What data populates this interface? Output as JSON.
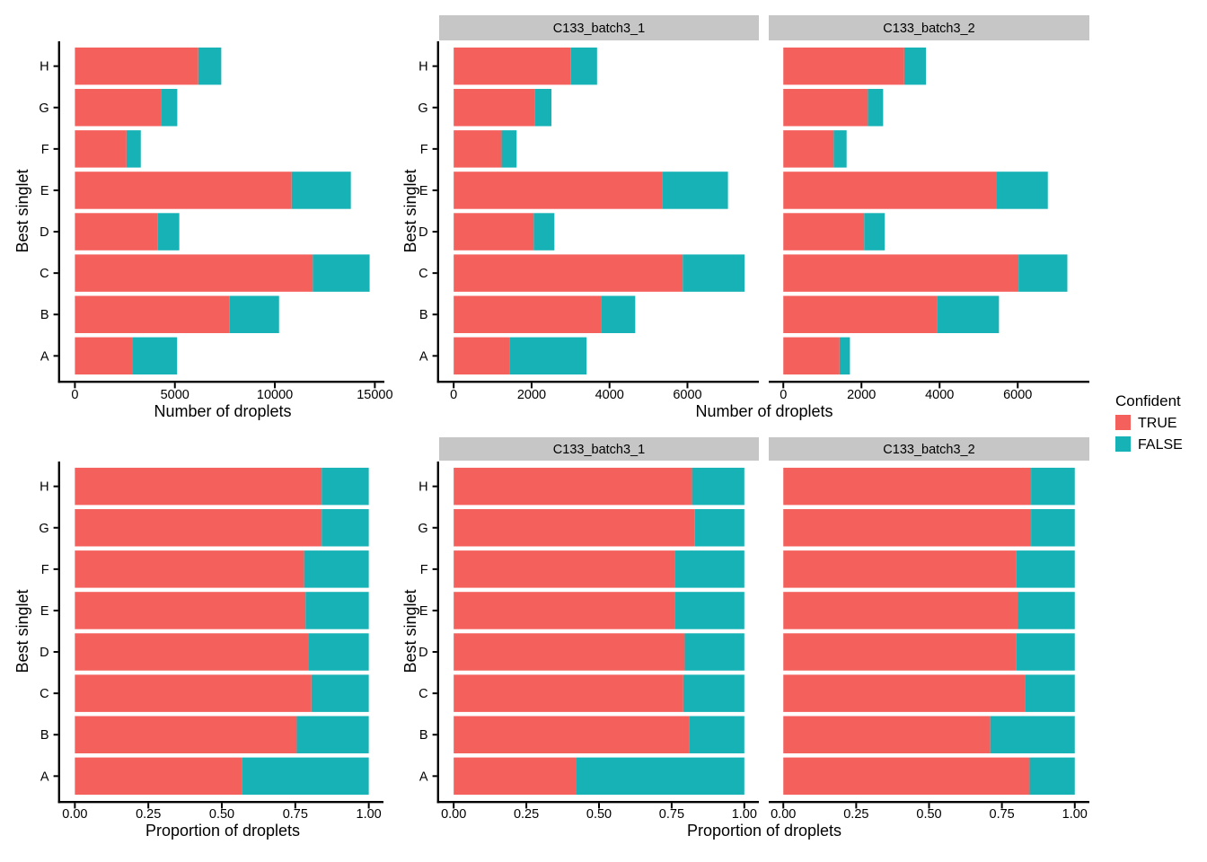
{
  "figure": {
    "background": "#ffffff",
    "strip_bg": "#C6C6C6",
    "axis_color": "#000000",
    "categories_bottom_to_top": [
      "A",
      "B",
      "C",
      "D",
      "E",
      "F",
      "G",
      "H"
    ],
    "legend": {
      "title": "Confident",
      "items": [
        {
          "label": "TRUE",
          "color": "#F4615D"
        },
        {
          "label": "FALSE",
          "color": "#17B2B6"
        }
      ]
    }
  },
  "chart_data": [
    {
      "id": "counts-overall",
      "type": "bar",
      "orientation": "horizontal",
      "stacked": true,
      "xlabel": "Number of droplets",
      "ylabel": "Best singlet",
      "categories": [
        "A",
        "B",
        "C",
        "D",
        "E",
        "F",
        "G",
        "H"
      ],
      "series": [
        {
          "name": "TRUE",
          "values": [
            2900,
            7740,
            11900,
            4150,
            10840,
            2580,
            4300,
            6170
          ]
        },
        {
          "name": "FALSE",
          "values": [
            2210,
            2470,
            2840,
            1070,
            2960,
            715,
            820,
            1150
          ]
        }
      ],
      "x_ticks": {
        "values": [
          0,
          5000,
          10000,
          15000
        ],
        "labels": [
          "0",
          "5000",
          "10000",
          "15000"
        ]
      },
      "x_domain": [
        -737,
        15477
      ],
      "grid": false
    },
    {
      "id": "counts-by-sample",
      "type": "bar",
      "orientation": "horizontal",
      "stacked": true,
      "xlabel": "Number of droplets",
      "ylabel": "Best singlet",
      "categories": [
        "A",
        "B",
        "C",
        "D",
        "E",
        "F",
        "G",
        "H"
      ],
      "facets": [
        {
          "label": "C133_batch3_1",
          "series": [
            {
              "name": "TRUE",
              "values": [
                1430,
                3790,
                5880,
                2055,
                5350,
                1230,
                2085,
                3010
              ]
            },
            {
              "name": "FALSE",
              "values": [
                1980,
                870,
                1585,
                530,
                1690,
                385,
                425,
                670
              ]
            }
          ]
        },
        {
          "label": "C133_batch3_2",
          "series": [
            {
              "name": "TRUE",
              "values": [
                1440,
                3930,
                6020,
                2070,
                5445,
                1290,
                2165,
                3095
              ]
            },
            {
              "name": "FALSE",
              "values": [
                265,
                1590,
                1250,
                525,
                1325,
                330,
                390,
                555
              ]
            }
          ]
        }
      ],
      "x_ticks": {
        "values": [
          0,
          2000,
          4000,
          6000
        ],
        "labels": [
          "0",
          "2000",
          "4000",
          "6000"
        ]
      },
      "x_domain": [
        -373,
        7833
      ],
      "grid": false
    },
    {
      "id": "proportion-overall",
      "type": "bar",
      "orientation": "horizontal",
      "stacked": true,
      "xlabel": "Proportion of droplets",
      "ylabel": "Best singlet",
      "categories": [
        "A",
        "B",
        "C",
        "D",
        "E",
        "F",
        "G",
        "H"
      ],
      "series": [
        {
          "name": "TRUE",
          "values": [
            0.57,
            0.755,
            0.805,
            0.795,
            0.785,
            0.78,
            0.84,
            0.84
          ]
        },
        {
          "name": "FALSE",
          "values": [
            0.43,
            0.245,
            0.195,
            0.205,
            0.215,
            0.22,
            0.16,
            0.16
          ]
        }
      ],
      "x_ticks": {
        "values": [
          0,
          0.25,
          0.5,
          0.75,
          1.0
        ],
        "labels": [
          "0.00",
          "0.25",
          "0.50",
          "0.75",
          "1.00"
        ]
      },
      "x_domain": [
        -0.05,
        1.05
      ],
      "grid": false
    },
    {
      "id": "proportion-by-sample",
      "type": "bar",
      "orientation": "horizontal",
      "stacked": true,
      "xlabel": "Proportion of droplets",
      "ylabel": "Best singlet",
      "categories": [
        "A",
        "B",
        "C",
        "D",
        "E",
        "F",
        "G",
        "H"
      ],
      "facets": [
        {
          "label": "C133_batch3_1",
          "series": [
            {
              "name": "TRUE",
              "values": [
                0.42,
                0.81,
                0.79,
                0.795,
                0.76,
                0.76,
                0.83,
                0.82
              ]
            },
            {
              "name": "FALSE",
              "values": [
                0.58,
                0.19,
                0.21,
                0.205,
                0.24,
                0.24,
                0.17,
                0.18
              ]
            }
          ]
        },
        {
          "label": "C133_batch3_2",
          "series": [
            {
              "name": "TRUE",
              "values": [
                0.845,
                0.71,
                0.83,
                0.8,
                0.805,
                0.8,
                0.85,
                0.85
              ]
            },
            {
              "name": "FALSE",
              "values": [
                0.155,
                0.29,
                0.17,
                0.2,
                0.195,
                0.2,
                0.15,
                0.15
              ]
            }
          ]
        }
      ],
      "x_ticks": {
        "values": [
          0,
          0.25,
          0.5,
          0.75,
          1.0
        ],
        "labels": [
          "0.00",
          "0.25",
          "0.50",
          "0.75",
          "1.00"
        ]
      },
      "x_domain": [
        -0.05,
        1.05
      ],
      "grid": false
    }
  ]
}
